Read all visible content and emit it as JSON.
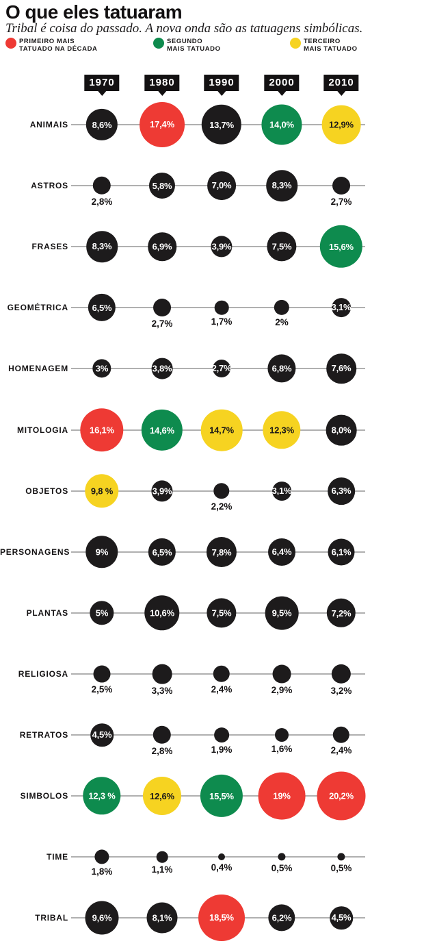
{
  "header": {
    "title": "O que eles tatuaram",
    "subtitle": "Tribal é coisa do passado. A nova onda são as tatuagens simbólicas."
  },
  "legend": {
    "items": [
      {
        "color_name": "red",
        "color": "#ee3a34",
        "label": "PRIMEIRO MAIS\nTATUADO NA DÉCADA"
      },
      {
        "color_name": "green",
        "color": "#0e8b4e",
        "label": "SEGUNDO\nMAIS TATUADO"
      },
      {
        "color_name": "yellow",
        "color": "#f6d321",
        "label": "TERCEIRO\nMAIS TATUADO"
      }
    ]
  },
  "chart_data": {
    "type": "bubble-matrix",
    "title": "O que eles tatuaram",
    "x_labels": [
      "1970",
      "1980",
      "1990",
      "2000",
      "2010"
    ],
    "value_unit": "%",
    "legend_position": "top",
    "colors": {
      "black": "#1d1b1c",
      "red": "#ee3a34",
      "green": "#0e8b4e",
      "yellow": "#f6d321",
      "line": "#b0b0b0",
      "text_on_dark": "#ffffff",
      "text_on_yellow": "#1a1819"
    },
    "rows": [
      {
        "category": "ANIMAIS",
        "points": [
          {
            "value": 8.6,
            "text": "8,6%",
            "color": "black",
            "label_pos": "inside"
          },
          {
            "value": 17.4,
            "text": "17,4%",
            "color": "red",
            "label_pos": "inside"
          },
          {
            "value": 13.7,
            "text": "13,7%",
            "color": "black",
            "label_pos": "inside"
          },
          {
            "value": 14.0,
            "text": "14,0%",
            "color": "green",
            "label_pos": "inside"
          },
          {
            "value": 12.9,
            "text": "12,9%",
            "color": "yellow",
            "label_pos": "inside"
          }
        ]
      },
      {
        "category": "ASTROS",
        "points": [
          {
            "value": 2.8,
            "text": "2,8%",
            "color": "black",
            "label_pos": "below"
          },
          {
            "value": 5.8,
            "text": "5,8%",
            "color": "black",
            "label_pos": "inside"
          },
          {
            "value": 7.0,
            "text": "7,0%",
            "color": "black",
            "label_pos": "inside"
          },
          {
            "value": 8.3,
            "text": "8,3%",
            "color": "black",
            "label_pos": "inside"
          },
          {
            "value": 2.7,
            "text": "2,7%",
            "color": "black",
            "label_pos": "below"
          }
        ]
      },
      {
        "category": "FRASES",
        "points": [
          {
            "value": 8.3,
            "text": "8,3%",
            "color": "black",
            "label_pos": "inside"
          },
          {
            "value": 6.9,
            "text": "6,9%",
            "color": "black",
            "label_pos": "inside"
          },
          {
            "value": 3.9,
            "text": "3,9%",
            "color": "black",
            "label_pos": "inside"
          },
          {
            "value": 7.5,
            "text": "7,5%",
            "color": "black",
            "label_pos": "inside"
          },
          {
            "value": 15.6,
            "text": "15,6%",
            "color": "green",
            "label_pos": "inside"
          }
        ]
      },
      {
        "category": "GEOMÉTRICA",
        "points": [
          {
            "value": 6.5,
            "text": "6,5%",
            "color": "black",
            "label_pos": "inside"
          },
          {
            "value": 2.7,
            "text": "2,7%",
            "color": "black",
            "label_pos": "below"
          },
          {
            "value": 1.7,
            "text": "1,7%",
            "color": "black",
            "label_pos": "below"
          },
          {
            "value": 2.0,
            "text": "2%",
            "color": "black",
            "label_pos": "below"
          },
          {
            "value": 3.1,
            "text": "3,1%",
            "color": "black",
            "label_pos": "inside"
          }
        ]
      },
      {
        "category": "HOMENAGEM",
        "points": [
          {
            "value": 3.0,
            "text": "3%",
            "color": "black",
            "label_pos": "inside"
          },
          {
            "value": 3.8,
            "text": "3,8%",
            "color": "black",
            "label_pos": "inside"
          },
          {
            "value": 2.7,
            "text": "2,7%",
            "color": "black",
            "label_pos": "inside"
          },
          {
            "value": 6.8,
            "text": "6,8%",
            "color": "black",
            "label_pos": "inside"
          },
          {
            "value": 7.6,
            "text": "7,6%",
            "color": "black",
            "label_pos": "inside"
          }
        ]
      },
      {
        "category": "MITOLOGIA",
        "points": [
          {
            "value": 16.1,
            "text": "16,1%",
            "color": "red",
            "label_pos": "inside"
          },
          {
            "value": 14.6,
            "text": "14,6%",
            "color": "green",
            "label_pos": "inside"
          },
          {
            "value": 14.7,
            "text": "14,7%",
            "color": "yellow",
            "label_pos": "inside"
          },
          {
            "value": 12.3,
            "text": "12,3%",
            "color": "yellow",
            "label_pos": "inside"
          },
          {
            "value": 8.0,
            "text": "8,0%",
            "color": "black",
            "label_pos": "inside"
          }
        ]
      },
      {
        "category": "OBJETOS",
        "points": [
          {
            "value": 9.8,
            "text": "9,8 %",
            "color": "yellow",
            "label_pos": "inside"
          },
          {
            "value": 3.9,
            "text": "3,9%",
            "color": "black",
            "label_pos": "inside"
          },
          {
            "value": 2.2,
            "text": "2,2%",
            "color": "black",
            "label_pos": "below"
          },
          {
            "value": 3.1,
            "text": "3,1%",
            "color": "black",
            "label_pos": "inside"
          },
          {
            "value": 6.3,
            "text": "6,3%",
            "color": "black",
            "label_pos": "inside"
          }
        ]
      },
      {
        "category": "PERSONAGENS",
        "points": [
          {
            "value": 9.0,
            "text": "9%",
            "color": "black",
            "label_pos": "inside"
          },
          {
            "value": 6.5,
            "text": "6,5%",
            "color": "black",
            "label_pos": "inside"
          },
          {
            "value": 7.8,
            "text": "7,8%",
            "color": "black",
            "label_pos": "inside"
          },
          {
            "value": 6.4,
            "text": "6,4%",
            "color": "black",
            "label_pos": "inside"
          },
          {
            "value": 6.1,
            "text": "6,1%",
            "color": "black",
            "label_pos": "inside"
          }
        ]
      },
      {
        "category": "PLANTAS",
        "points": [
          {
            "value": 5.0,
            "text": "5%",
            "color": "black",
            "label_pos": "inside"
          },
          {
            "value": 10.6,
            "text": "10,6%",
            "color": "black",
            "label_pos": "inside"
          },
          {
            "value": 7.5,
            "text": "7,5%",
            "color": "black",
            "label_pos": "inside"
          },
          {
            "value": 9.5,
            "text": "9,5%",
            "color": "black",
            "label_pos": "inside"
          },
          {
            "value": 7.2,
            "text": "7,2%",
            "color": "black",
            "label_pos": "inside"
          }
        ]
      },
      {
        "category": "RELIGIOSA",
        "points": [
          {
            "value": 2.5,
            "text": "2,5%",
            "color": "black",
            "label_pos": "below"
          },
          {
            "value": 3.3,
            "text": "3,3%",
            "color": "black",
            "label_pos": "below"
          },
          {
            "value": 2.4,
            "text": "2,4%",
            "color": "black",
            "label_pos": "below"
          },
          {
            "value": 2.9,
            "text": "2,9%",
            "color": "black",
            "label_pos": "below"
          },
          {
            "value": 3.2,
            "text": "3,2%",
            "color": "black",
            "label_pos": "below"
          }
        ]
      },
      {
        "category": "RETRATOS",
        "points": [
          {
            "value": 4.5,
            "text": "4,5%",
            "color": "black",
            "label_pos": "inside"
          },
          {
            "value": 2.8,
            "text": "2,8%",
            "color": "black",
            "label_pos": "below"
          },
          {
            "value": 1.9,
            "text": "1,9%",
            "color": "black",
            "label_pos": "below"
          },
          {
            "value": 1.6,
            "text": "1,6%",
            "color": "black",
            "label_pos": "below"
          },
          {
            "value": 2.4,
            "text": "2,4%",
            "color": "black",
            "label_pos": "below"
          }
        ]
      },
      {
        "category": "SIMBOLOS",
        "points": [
          {
            "value": 12.3,
            "text": "12,3 %",
            "color": "green",
            "label_pos": "inside"
          },
          {
            "value": 12.6,
            "text": "12,6%",
            "color": "yellow",
            "label_pos": "inside"
          },
          {
            "value": 15.5,
            "text": "15,5%",
            "color": "green",
            "label_pos": "inside"
          },
          {
            "value": 19.0,
            "text": "19%",
            "color": "red",
            "label_pos": "inside"
          },
          {
            "value": 20.2,
            "text": "20,2%",
            "color": "red",
            "label_pos": "inside"
          }
        ]
      },
      {
        "category": "TIME",
        "points": [
          {
            "value": 1.8,
            "text": "1,8%",
            "color": "black",
            "label_pos": "below"
          },
          {
            "value": 1.1,
            "text": "1,1%",
            "color": "black",
            "label_pos": "below"
          },
          {
            "value": 0.4,
            "text": "0,4%",
            "color": "black",
            "label_pos": "below"
          },
          {
            "value": 0.5,
            "text": "0,5%",
            "color": "black",
            "label_pos": "below"
          },
          {
            "value": 0.5,
            "text": "0,5%",
            "color": "black",
            "label_pos": "below"
          }
        ]
      },
      {
        "category": "TRIBAL",
        "points": [
          {
            "value": 9.6,
            "text": "9,6%",
            "color": "black",
            "label_pos": "inside"
          },
          {
            "value": 8.1,
            "text": "8,1%",
            "color": "black",
            "label_pos": "inside"
          },
          {
            "value": 18.5,
            "text": "18,5%",
            "color": "red",
            "label_pos": "inside"
          },
          {
            "value": 6.2,
            "text": "6,2%",
            "color": "black",
            "label_pos": "inside"
          },
          {
            "value": 4.5,
            "text": "4,5%",
            "color": "black",
            "label_pos": "inside"
          }
        ]
      }
    ]
  }
}
